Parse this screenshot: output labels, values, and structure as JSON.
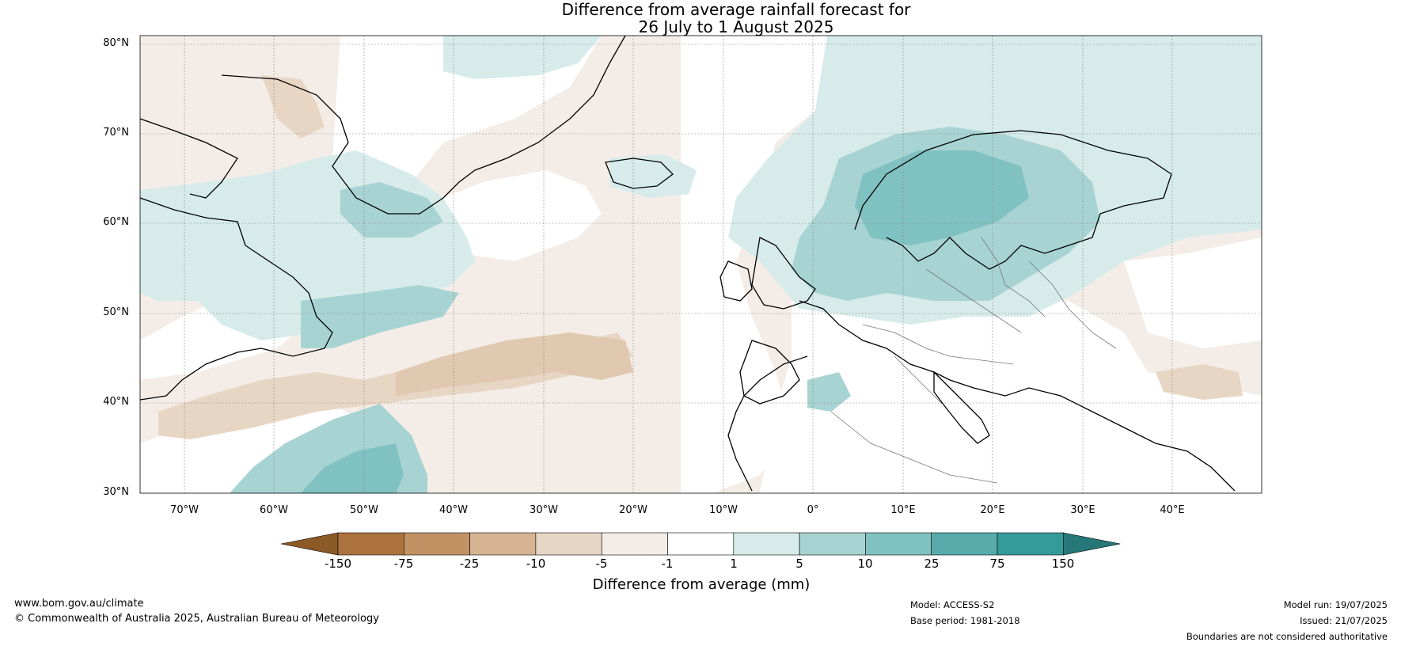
{
  "title": {
    "line1": "Difference from average rainfall forecast for",
    "line2": "26 July to 1 August 2025"
  },
  "latitude_labels": [
    "80°N",
    "70°N",
    "60°N",
    "50°N",
    "40°N",
    "30°N"
  ],
  "longitude_labels": [
    "70°W",
    "60°W",
    "50°W",
    "40°W",
    "30°W",
    "20°W",
    "10°W",
    "0°",
    "10°E",
    "20°E",
    "30°E",
    "40°E"
  ],
  "legend": {
    "ticks": [
      "-150",
      "-75",
      "-25",
      "-10",
      "-5",
      "-1",
      "1",
      "5",
      "10",
      "25",
      "75",
      "150"
    ],
    "colors": [
      "#8c5a27",
      "#ad733f",
      "#c29265",
      "#d6b493",
      "#e8d6c5",
      "#f4ede7",
      "#ffffff",
      "#d7ebeb",
      "#a8d3d3",
      "#80c1c1",
      "#57abab",
      "#359a9a",
      "#267878"
    ],
    "label": "Difference from average (mm)"
  },
  "footer": {
    "website": "www.bom.gov.au/climate",
    "copyright": "© Commonwealth of Australia 2025, Australian Bureau of Meteorology",
    "model": "Model: ACCESS-S2",
    "base_period": "Base period: 1981-2018",
    "model_run": "Model run: 19/07/2025",
    "issued": "Issued: 21/07/2025",
    "disclaimer": "Boundaries are not considered authoritative"
  }
}
